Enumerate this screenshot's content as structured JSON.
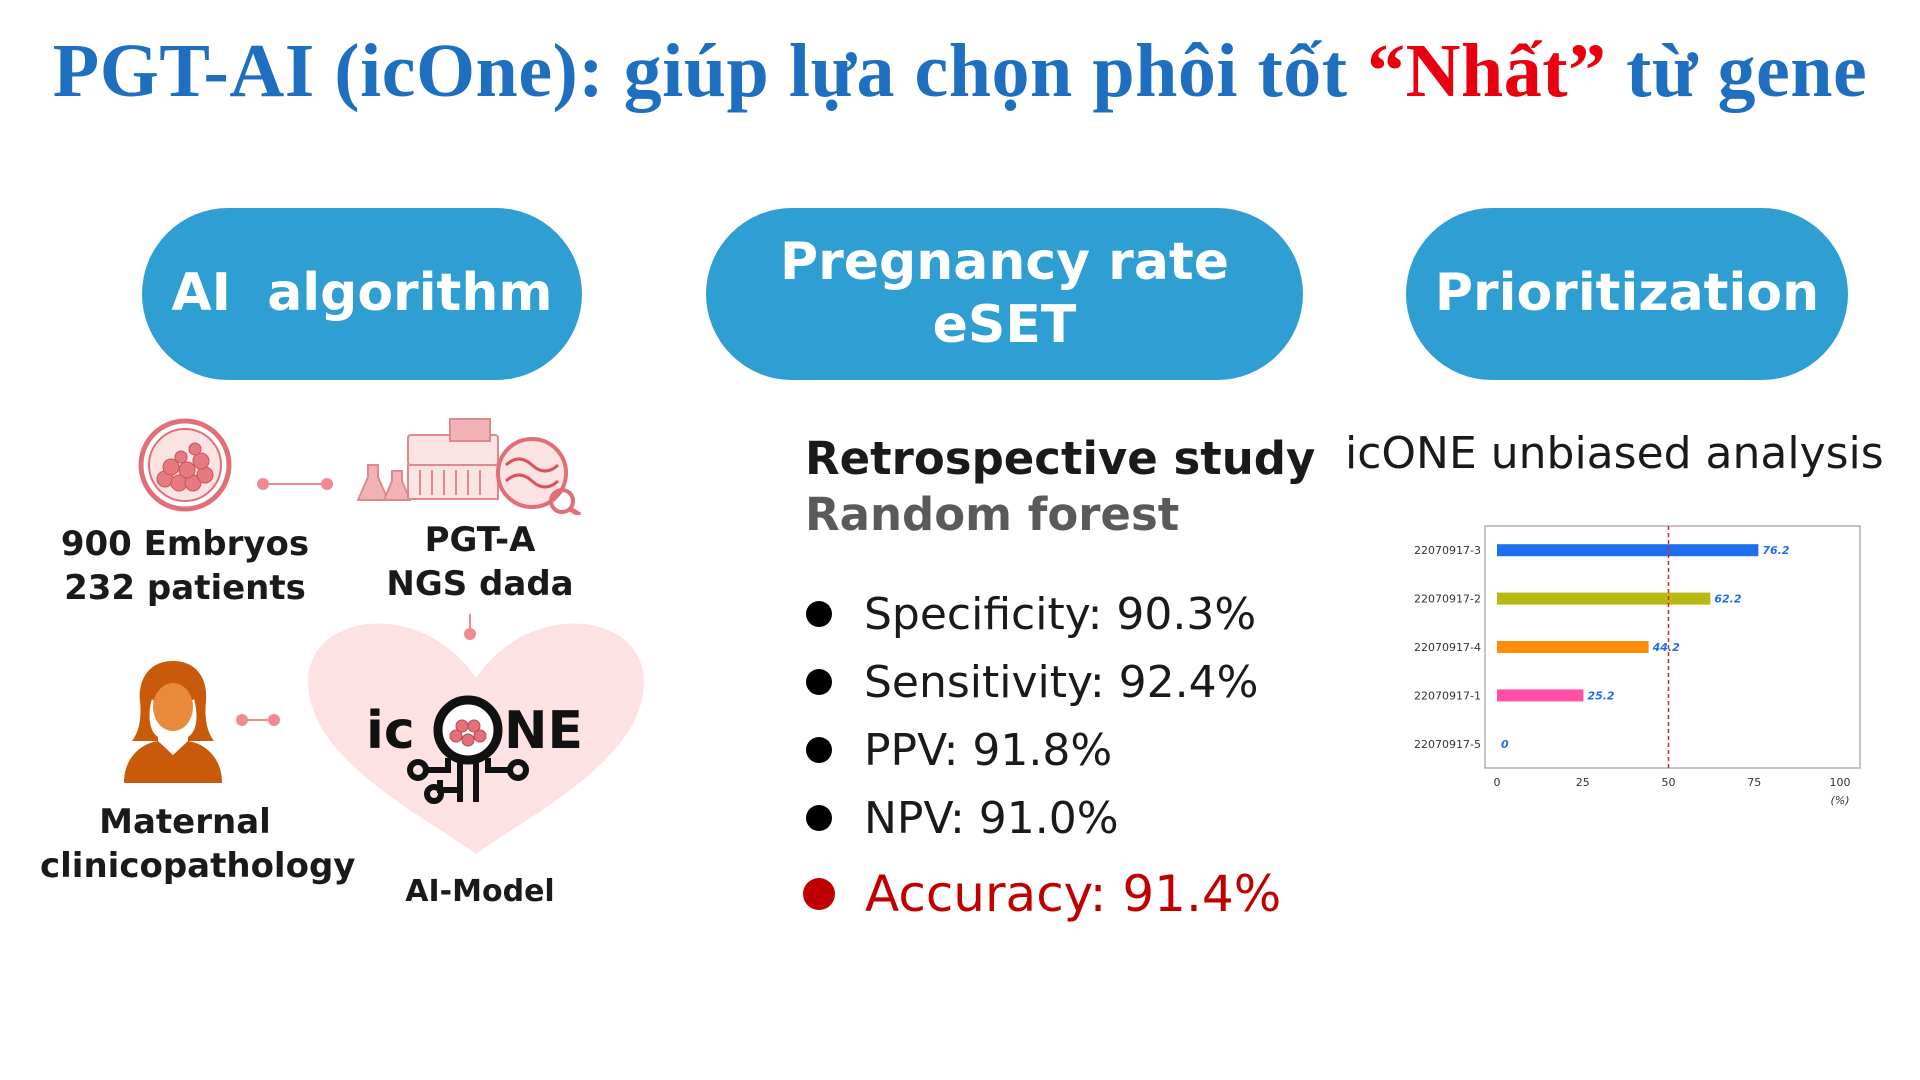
{
  "title": {
    "part1": "PGT-AI (icOne): giúp lựa chọn phôi tốt ",
    "highlight": "“Nhất”",
    "part2": " từ gene"
  },
  "pills": {
    "ai_algorithm": "AI  algorithm",
    "pregnancy_line1": "Pregnancy rate",
    "pregnancy_line2": "eSET",
    "prioritization": "Prioritization"
  },
  "ai_panel": {
    "embryos_line1": "900 Embryos",
    "embryos_line2": "232 patients",
    "pgta_line1": "PGT-A",
    "pgta_line2": "NGS dada",
    "maternal_line1": "Maternal",
    "maternal_line2": "clinicopathology",
    "model_label": "AI-Model",
    "logo_text": "icONE"
  },
  "study": {
    "heading": "Retrospective study",
    "method": "Random forest",
    "metrics": [
      "Specificity: 90.3%",
      "Sensitivity: 92.4%",
      "PPV: 91.8%",
      "NPV: 91.0%"
    ],
    "accuracy": "Accuracy: 91.4%"
  },
  "prioritization": {
    "heading": "icONE unbiased analysis"
  },
  "colors": {
    "title_blue": "#1f6fc0",
    "title_red": "#e8000f",
    "pill_blue": "#2f9ed3",
    "accuracy_red": "#c00000"
  },
  "chart_data": {
    "type": "bar",
    "orientation": "horizontal",
    "categories": [
      "22070917-3",
      "22070917-2",
      "22070917-4",
      "22070917-1",
      "22070917-5"
    ],
    "values": [
      76.2,
      62.2,
      44.2,
      25.2,
      0
    ],
    "value_labels": [
      "76.2",
      "62.2",
      "44.2",
      "25.2",
      "0"
    ],
    "bar_colors": [
      "#1e6ff0",
      "#b9b913",
      "#ff8c0a",
      "#ff4fa7",
      "#999999"
    ],
    "xlim": [
      0,
      100
    ],
    "xticks": [
      "0",
      "25",
      "50",
      "75",
      "100"
    ],
    "xunit": "(%)",
    "reference_line": 50,
    "title": "",
    "xlabel": "",
    "ylabel": ""
  }
}
